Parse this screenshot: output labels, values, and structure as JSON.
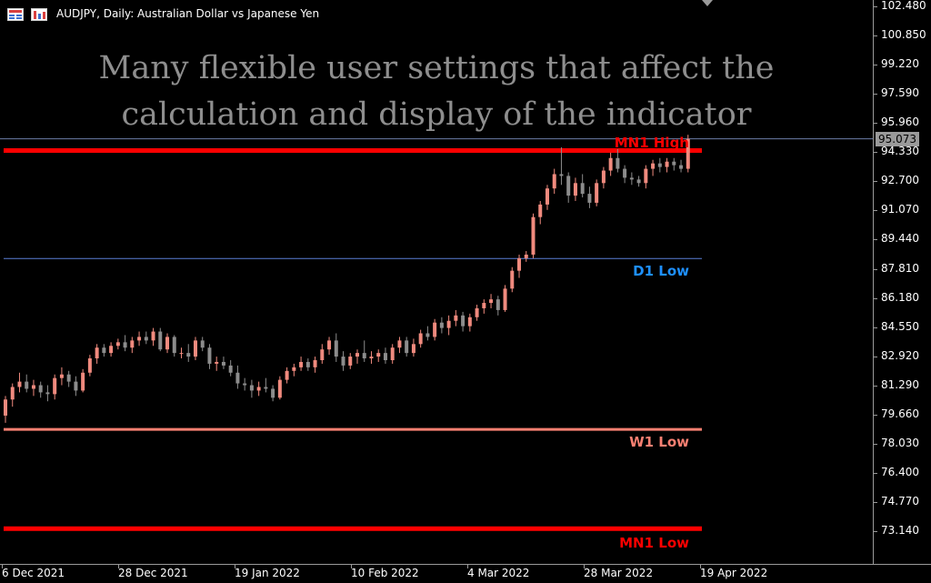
{
  "window": {
    "title": "AUDJPY, Daily:  Australian Dollar vs Japanese Yen",
    "icons": [
      "chart-grid-icon",
      "bar-chart-icon"
    ]
  },
  "headline": {
    "line1": "Many flexible user settings that affect the",
    "line2": "calculation and display of the indicator"
  },
  "colors": {
    "background": "#000000",
    "bull_candle": "#f08a7e",
    "bear_candle": "#8c8c8c",
    "mn1_level": "#ff0000",
    "w1_level": "#fa8072",
    "d1_level": "#1e90ff",
    "d1_line": "#5a7fd6",
    "current_price_line": "#6c7ea8",
    "axis": "#9a9a9a",
    "headline_text": "#8e8e8e"
  },
  "levels": [
    {
      "id": "mn1-high",
      "label": "MN1 High",
      "price": 94.42,
      "color": "#ff0000",
      "style": "thick"
    },
    {
      "id": "d1-low",
      "label": "D1 Low",
      "price": 88.38,
      "color": "#1e90ff",
      "style": "thin"
    },
    {
      "id": "w1-low",
      "label": "W1 Low",
      "price": 78.83,
      "color": "#fa8072",
      "style": "medium"
    },
    {
      "id": "mn1-low",
      "label": "MN1 Low",
      "price": 73.28,
      "color": "#ff0000",
      "style": "thick"
    }
  ],
  "price_axis": {
    "ticks": [
      "102.480",
      "100.850",
      "99.220",
      "97.590",
      "95.960",
      "94.330",
      "92.700",
      "91.070",
      "89.440",
      "87.810",
      "86.180",
      "84.550",
      "82.920",
      "81.290",
      "79.660",
      "78.030",
      "76.400",
      "74.770",
      "73.140"
    ],
    "range": [
      72.5,
      103.0
    ],
    "current_price": "95.073"
  },
  "time_axis": {
    "labels": [
      "6 Dec 2021",
      "28 Dec 2021",
      "19 Jan 2022",
      "10 Feb 2022",
      "4 Mar 2022",
      "28 Mar 2022",
      "19 Apr 2022"
    ]
  },
  "candles": [
    [
      79.6,
      80.7,
      79.2,
      80.5
    ],
    [
      80.5,
      81.4,
      80.1,
      81.2
    ],
    [
      81.2,
      82.0,
      80.9,
      81.5
    ],
    [
      81.5,
      81.9,
      80.9,
      81.1
    ],
    [
      81.1,
      81.6,
      80.7,
      81.3
    ],
    [
      81.3,
      81.5,
      80.6,
      80.9
    ],
    [
      80.9,
      81.3,
      80.4,
      80.8
    ],
    [
      80.8,
      81.9,
      80.5,
      81.7
    ],
    [
      81.7,
      82.3,
      81.3,
      81.9
    ],
    [
      81.9,
      82.1,
      81.2,
      81.5
    ],
    [
      81.5,
      81.8,
      80.7,
      81.0
    ],
    [
      81.0,
      82.2,
      80.9,
      82.0
    ],
    [
      82.0,
      83.0,
      81.8,
      82.8
    ],
    [
      82.8,
      83.6,
      82.5,
      83.4
    ],
    [
      83.4,
      83.6,
      82.9,
      83.1
    ],
    [
      83.1,
      83.7,
      82.9,
      83.5
    ],
    [
      83.5,
      83.9,
      83.3,
      83.7
    ],
    [
      83.7,
      84.1,
      83.2,
      83.4
    ],
    [
      83.4,
      84.0,
      83.1,
      83.8
    ],
    [
      83.8,
      84.3,
      83.5,
      84.0
    ],
    [
      84.0,
      84.3,
      83.6,
      83.8
    ],
    [
      83.8,
      84.5,
      83.5,
      84.3
    ],
    [
      84.3,
      84.5,
      83.2,
      83.3
    ],
    [
      83.3,
      84.2,
      83.1,
      84.0
    ],
    [
      84.0,
      84.1,
      82.9,
      83.1
    ],
    [
      83.1,
      83.4,
      82.8,
      83.1
    ],
    [
      83.1,
      83.6,
      82.6,
      82.9
    ],
    [
      82.9,
      84.0,
      82.7,
      83.8
    ],
    [
      83.8,
      84.0,
      83.2,
      83.4
    ],
    [
      83.4,
      83.6,
      82.2,
      82.5
    ],
    [
      82.5,
      82.9,
      82.1,
      82.6
    ],
    [
      82.6,
      82.9,
      82.2,
      82.4
    ],
    [
      82.4,
      82.7,
      81.8,
      82.0
    ],
    [
      82.0,
      82.4,
      81.1,
      81.4
    ],
    [
      81.4,
      81.7,
      81.0,
      81.3
    ],
    [
      81.3,
      81.6,
      80.6,
      81.0
    ],
    [
      81.0,
      81.5,
      80.7,
      81.2
    ],
    [
      81.2,
      81.7,
      80.9,
      81.1
    ],
    [
      81.1,
      81.3,
      80.4,
      80.6
    ],
    [
      80.6,
      81.8,
      80.5,
      81.6
    ],
    [
      81.6,
      82.3,
      81.4,
      82.1
    ],
    [
      82.1,
      82.5,
      81.8,
      82.3
    ],
    [
      82.3,
      82.9,
      82.1,
      82.6
    ],
    [
      82.6,
      82.8,
      82.1,
      82.3
    ],
    [
      82.3,
      82.9,
      82.0,
      82.7
    ],
    [
      82.7,
      83.6,
      82.5,
      83.3
    ],
    [
      83.3,
      84.0,
      83.0,
      83.8
    ],
    [
      83.8,
      84.2,
      82.6,
      82.9
    ],
    [
      82.9,
      83.2,
      82.1,
      82.4
    ],
    [
      82.4,
      83.1,
      82.2,
      82.9
    ],
    [
      82.9,
      83.3,
      82.5,
      83.1
    ],
    [
      83.1,
      83.8,
      82.6,
      82.8
    ],
    [
      82.8,
      83.2,
      82.5,
      82.9
    ],
    [
      82.9,
      83.3,
      82.6,
      83.1
    ],
    [
      83.1,
      83.4,
      82.5,
      82.7
    ],
    [
      82.7,
      83.6,
      82.5,
      83.4
    ],
    [
      83.4,
      84.0,
      83.1,
      83.8
    ],
    [
      83.8,
      84.0,
      82.9,
      83.1
    ],
    [
      83.1,
      83.9,
      82.9,
      83.6
    ],
    [
      83.6,
      84.4,
      83.4,
      84.2
    ],
    [
      84.2,
      84.6,
      83.8,
      84.0
    ],
    [
      84.0,
      85.0,
      83.8,
      84.8
    ],
    [
      84.8,
      85.1,
      84.2,
      84.5
    ],
    [
      84.5,
      85.2,
      84.1,
      84.9
    ],
    [
      84.9,
      85.5,
      84.6,
      85.2
    ],
    [
      85.2,
      85.4,
      84.3,
      84.6
    ],
    [
      84.6,
      85.3,
      84.3,
      85.1
    ],
    [
      85.1,
      85.8,
      84.9,
      85.6
    ],
    [
      85.6,
      86.1,
      85.3,
      85.9
    ],
    [
      85.9,
      86.4,
      85.6,
      86.1
    ],
    [
      86.1,
      86.3,
      85.2,
      85.5
    ],
    [
      85.5,
      86.9,
      85.4,
      86.7
    ],
    [
      86.7,
      87.9,
      86.5,
      87.7
    ],
    [
      87.7,
      88.6,
      87.3,
      88.4
    ],
    [
      88.4,
      88.8,
      88.2,
      88.6
    ],
    [
      88.6,
      90.9,
      88.4,
      90.7
    ],
    [
      90.7,
      91.6,
      90.3,
      91.4
    ],
    [
      91.4,
      92.5,
      91.1,
      92.3
    ],
    [
      92.3,
      93.4,
      92.0,
      93.1
    ],
    [
      93.1,
      94.6,
      92.5,
      93.0
    ],
    [
      93.0,
      93.2,
      91.5,
      91.9
    ],
    [
      91.9,
      92.9,
      91.6,
      92.6
    ],
    [
      92.6,
      93.1,
      91.8,
      92.0
    ],
    [
      92.0,
      92.4,
      91.2,
      91.5
    ],
    [
      91.5,
      92.8,
      91.3,
      92.6
    ],
    [
      92.6,
      93.5,
      92.3,
      93.3
    ],
    [
      93.3,
      94.3,
      93.0,
      94.0
    ],
    [
      94.0,
      94.5,
      93.2,
      93.4
    ],
    [
      93.4,
      93.6,
      92.6,
      92.9
    ],
    [
      92.9,
      93.2,
      92.5,
      92.8
    ],
    [
      92.8,
      93.0,
      92.4,
      92.6
    ],
    [
      92.6,
      93.6,
      92.3,
      93.4
    ],
    [
      93.4,
      93.9,
      93.0,
      93.7
    ],
    [
      93.7,
      94.0,
      93.2,
      93.5
    ],
    [
      93.5,
      94.0,
      93.2,
      93.8
    ],
    [
      93.8,
      94.0,
      93.3,
      93.6
    ],
    [
      93.6,
      93.9,
      93.2,
      93.4
    ],
    [
      93.4,
      95.3,
      93.2,
      95.07
    ]
  ]
}
